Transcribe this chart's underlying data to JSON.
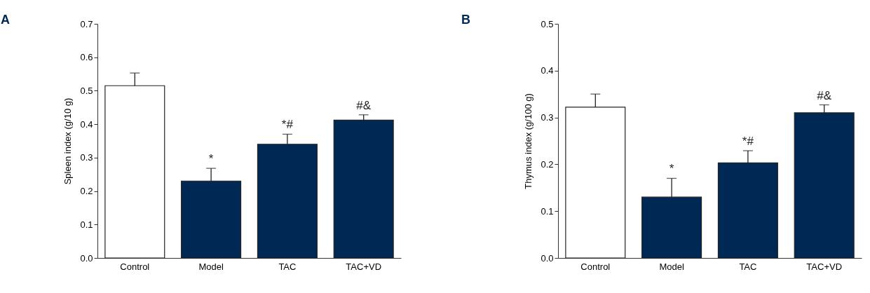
{
  "chart_data": [
    {
      "type": "bar",
      "title": "A",
      "ylabel": "Spleen index (g/10 g)",
      "categories": [
        "Control",
        "Model",
        "TAC",
        "TAC+VD"
      ],
      "values": [
        0.515,
        0.23,
        0.34,
        0.412
      ],
      "colors": [
        "#ffffff",
        "#002855",
        "#002855",
        "#002855"
      ],
      "errors": [
        [
          0.515,
          0.553
        ],
        [
          0.23,
          0.268
        ],
        [
          0.34,
          0.37
        ],
        [
          0.412,
          0.428
        ]
      ],
      "ylim": [
        0,
        0.7
      ],
      "yticks": [
        {
          "value": 0,
          "label": "0.0"
        },
        0.1,
        0.2,
        0.3,
        0.4,
        0.5,
        0.6,
        0.7
      ],
      "grid": false,
      "annotations": [
        "*",
        "*#",
        "#&"
      ]
    },
    {
      "type": "bar",
      "title": "B",
      "ylabel": "Thymus index (g/100 g)",
      "categories": [
        "Control",
        "Model",
        "TAC",
        "TAC+VD"
      ],
      "values": [
        0.322,
        0.13,
        0.203,
        0.31
      ],
      "colors": [
        "#ffffff",
        "#002855",
        "#002855",
        "#002855"
      ],
      "errors": [
        [
          0.322,
          0.35
        ],
        [
          0.13,
          0.17
        ],
        [
          0.203,
          0.229
        ],
        [
          0.31,
          0.327
        ]
      ],
      "ylim": [
        0,
        0.5
      ],
      "yticks": [
        {
          "value": 0,
          "label": "0.0"
        },
        0.1,
        0.2,
        0.3,
        0.4,
        0.5
      ],
      "grid": false,
      "annotations": [
        "*",
        "*#",
        "#&"
      ]
    }
  ]
}
